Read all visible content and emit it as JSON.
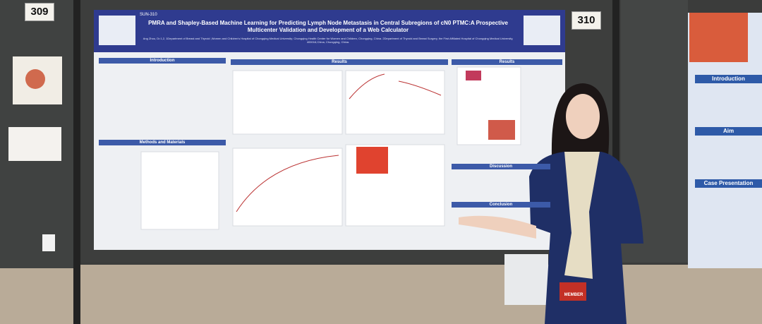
{
  "booth_numbers": [
    "309",
    "310"
  ],
  "poster": {
    "code": "SUN-310",
    "title": "PMRA and Shapley-Based Machine Learning for Predicting Lymph Node Metastasis in Central Subregions of cN0 PTMC:A Prospective Multicenter Validation and Development of a Web Calculator",
    "authors": "Ang Zhou, Dr.1,2, 1Department of Breast and Thyroid ,Women and Children's Hospital of Chongqing Medical University; Chongqing Health Center for Women and Children, Chongqing, China. 2Department of Thyroid and Breast Surgery, the First Affiliated Hospital of Chongqing Medical University, 400016,China, Chongqing, China.",
    "sections": [
      "Introduction",
      "Methods and Materials",
      "Results",
      "Results",
      "Discussion",
      "Conclusion"
    ]
  },
  "right_poster": {
    "sections": [
      "Introduction",
      "Aim",
      "Case Presentation"
    ]
  },
  "badge": "MEMBER"
}
